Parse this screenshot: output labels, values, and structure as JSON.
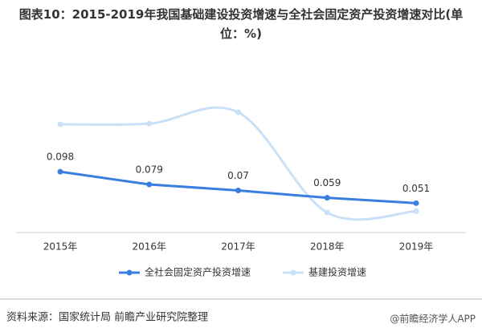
{
  "chart_data": {
    "type": "line",
    "title": "图表10：2015-2019年我国基础建设投资增速与全社会固定资产投资增速对比(单位：%)",
    "categories": [
      "2015年",
      "2016年",
      "2017年",
      "2018年",
      "2019年"
    ],
    "series": [
      {
        "name": "全社会固定资产投资增速",
        "color": "#3a7fe0",
        "values": [
          0.098,
          0.079,
          0.07,
          0.059,
          0.051
        ],
        "labels": true
      },
      {
        "name": "基建投资增速",
        "color": "#c9e0f7",
        "values": [
          0.169,
          0.17,
          0.187,
          0.037,
          0.039
        ],
        "smooth": true
      }
    ],
    "legend": "bottom",
    "source": "资料来源：国家统计局 前瞻产业研究院整理",
    "credit": "@前瞻经济学人APP"
  }
}
